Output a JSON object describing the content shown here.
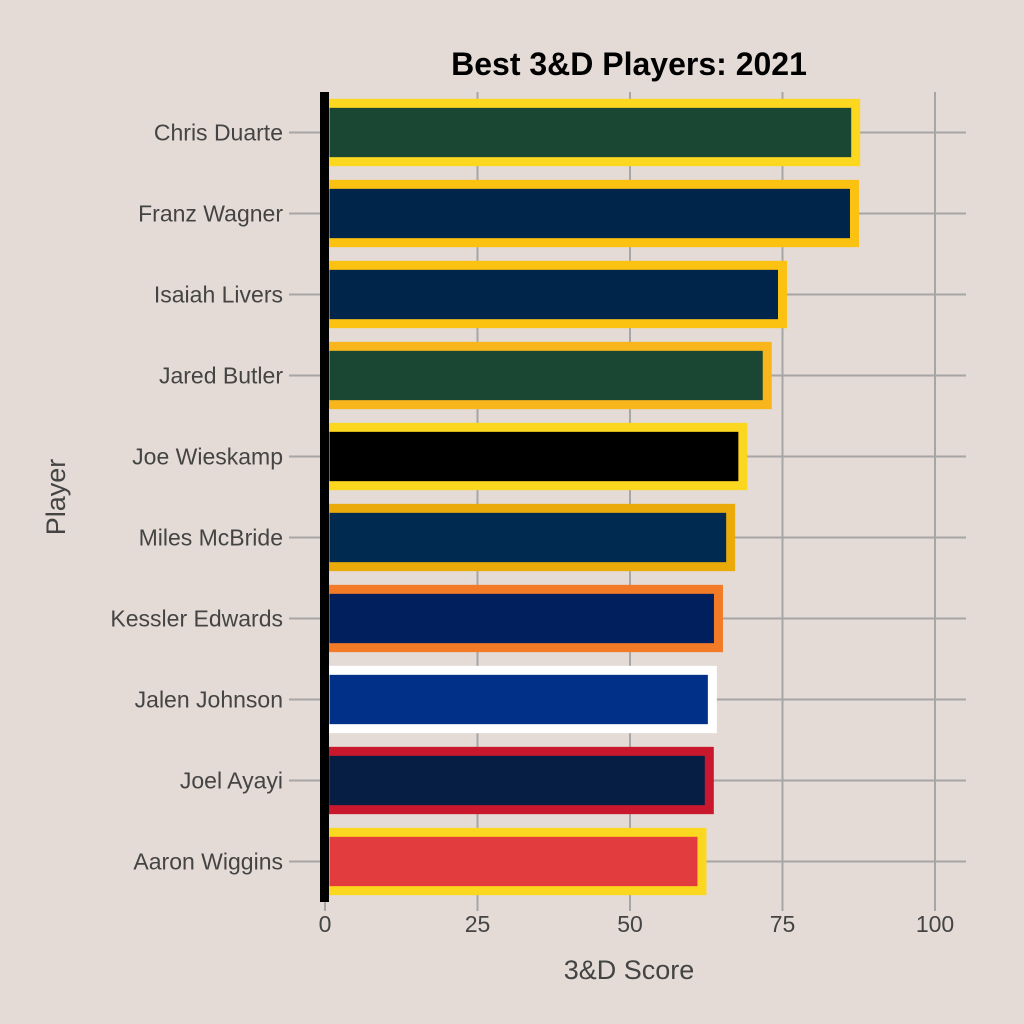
{
  "chart_data": {
    "type": "bar",
    "orientation": "horizontal",
    "title": "Best 3&D Players: 2021",
    "xlabel": "3&D Score",
    "ylabel": "Player",
    "xlim": [
      0,
      105
    ],
    "x_ticks": [
      "0",
      "25",
      "50",
      "75",
      "100"
    ],
    "grid": true,
    "legend": "none",
    "categories": [
      "Chris Duarte",
      "Franz Wagner",
      "Isaiah Livers",
      "Jared Butler",
      "Joe Wieskamp",
      "Miles McBride",
      "Kessler Edwards",
      "Jalen Johnson",
      "Joel Ayayi",
      "Aaron Wiggins"
    ],
    "values": [
      87,
      86.8,
      75,
      72.5,
      68.5,
      66.5,
      64.5,
      63.5,
      63,
      61.8
    ],
    "fill_colors": [
      "#1a4733",
      "#00254a",
      "#00254a",
      "#1a4733",
      "#000000",
      "#002a50",
      "#001f5c",
      "#003087",
      "#061d44",
      "#e23c3e"
    ],
    "border_colors": [
      "#fcd720",
      "#fcc212",
      "#fcc212",
      "#f8b61c",
      "#fcd720",
      "#eaaa09",
      "#f37a27",
      "#ffffff",
      "#c9172e",
      "#fcd720"
    ]
  }
}
